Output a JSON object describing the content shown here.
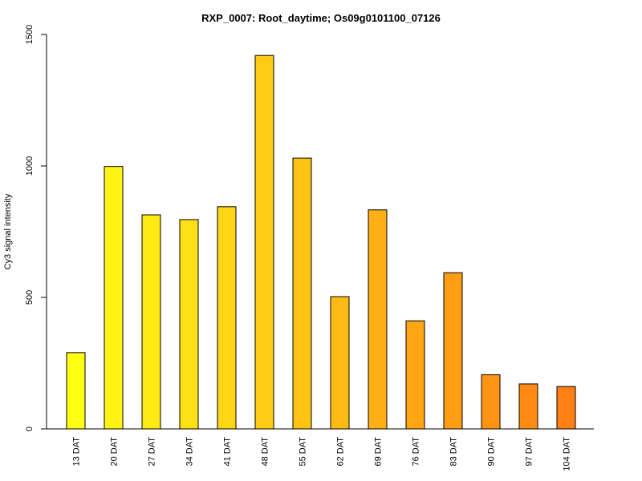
{
  "chart_data": {
    "type": "bar",
    "title": "RXP_0007: Root_daytime; Os09g0101100_07126",
    "xlabel": "",
    "ylabel": "Cy3 signal intensity",
    "ylim": [
      0,
      1500
    ],
    "yticks": [
      0,
      500,
      1000,
      1500
    ],
    "categories": [
      "13 DAT",
      "20 DAT",
      "27 DAT",
      "34 DAT",
      "41 DAT",
      "48 DAT",
      "55 DAT",
      "62 DAT",
      "69 DAT",
      "76 DAT",
      "83 DAT",
      "90 DAT",
      "97 DAT",
      "104 DAT"
    ],
    "values": [
      290,
      998,
      814,
      796,
      845,
      1420,
      1030,
      503,
      833,
      411,
      594,
      206,
      171,
      161
    ],
    "colors": [
      "#FFFF14",
      "#FFF314",
      "#FFEA14",
      "#FFE014",
      "#FFD614",
      "#FFCC14",
      "#FFC314",
      "#FFBA14",
      "#FFB014",
      "#FFA614",
      "#FF9D14",
      "#FF9314",
      "#FF8A14",
      "#FF8014"
    ],
    "grid": false,
    "legend": "none"
  }
}
